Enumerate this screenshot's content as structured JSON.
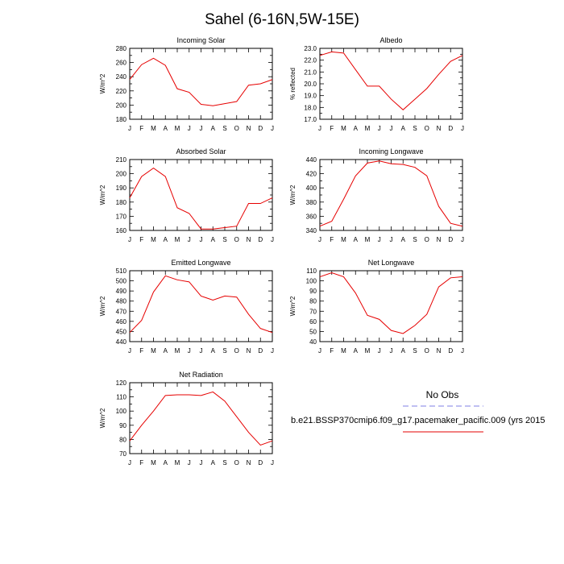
{
  "figure_title": "Sahel (6-16N,5W-15E)",
  "legend": {
    "items": [
      {
        "label": "No Obs",
        "color": "#7f7fe6",
        "dash": "dashed"
      },
      {
        "label": "b.e21.BSSP370cmip6.f09_g17.pacemaker_pacific.009 (yrs 2015",
        "color": "#e60000",
        "dash": "solid"
      }
    ]
  },
  "chart_data": [
    {
      "type": "line",
      "title": "Incoming Solar",
      "ylabel": "W/m^2",
      "x": [
        "J",
        "F",
        "M",
        "A",
        "M",
        "J",
        "J",
        "A",
        "S",
        "O",
        "N",
        "D",
        "J"
      ],
      "ylim": [
        180,
        280
      ],
      "yticks": [
        180,
        190,
        200,
        210,
        220,
        230,
        240,
        250,
        260,
        270,
        280
      ],
      "ytick_labels": [
        "180",
        "",
        "200",
        "",
        "220",
        "",
        "240",
        "",
        "260",
        "",
        "280"
      ],
      "series": [
        {
          "values": [
            236,
            257,
            266,
            256,
            223,
            218,
            201,
            199,
            202,
            205,
            228,
            230,
            236
          ],
          "color": "#e60000"
        }
      ]
    },
    {
      "type": "line",
      "title": "Albedo",
      "ylabel": "% reflected",
      "x": [
        "J",
        "F",
        "M",
        "A",
        "M",
        "J",
        "J",
        "A",
        "S",
        "O",
        "N",
        "D",
        "J"
      ],
      "ylim": [
        17.0,
        23.0
      ],
      "yticks": [
        17.0,
        17.5,
        18.0,
        18.5,
        19.0,
        19.5,
        20.0,
        20.5,
        21.0,
        21.5,
        22.0,
        22.5,
        23.0
      ],
      "ytick_labels": [
        "17.0",
        "",
        "18.0",
        "",
        "19.0",
        "",
        "20.0",
        "",
        "21.0",
        "",
        "22.0",
        "",
        "23.0"
      ],
      "series": [
        {
          "values": [
            22.4,
            22.7,
            22.6,
            21.2,
            19.8,
            19.8,
            18.7,
            17.8,
            18.7,
            19.6,
            20.8,
            21.9,
            22.4
          ],
          "color": "#e60000"
        }
      ]
    },
    {
      "type": "line",
      "title": "Absorbed Solar",
      "ylabel": "W/m^2",
      "x": [
        "J",
        "F",
        "M",
        "A",
        "M",
        "J",
        "J",
        "A",
        "S",
        "O",
        "N",
        "D",
        "J"
      ],
      "ylim": [
        160,
        210
      ],
      "yticks": [
        160,
        165,
        170,
        175,
        180,
        185,
        190,
        195,
        200,
        205,
        210
      ],
      "ytick_labels": [
        "160",
        "",
        "170",
        "",
        "180",
        "",
        "190",
        "",
        "200",
        "",
        "210"
      ],
      "series": [
        {
          "values": [
            183,
            198,
            204,
            198,
            176,
            172,
            161,
            161,
            162,
            163,
            179,
            179,
            183
          ],
          "color": "#e60000"
        }
      ]
    },
    {
      "type": "line",
      "title": "Incoming Longwave",
      "ylabel": "W/m^2",
      "x": [
        "J",
        "F",
        "M",
        "A",
        "M",
        "J",
        "J",
        "A",
        "S",
        "O",
        "N",
        "D",
        "J"
      ],
      "ylim": [
        340,
        440
      ],
      "yticks": [
        340,
        350,
        360,
        370,
        380,
        390,
        400,
        410,
        420,
        430,
        440
      ],
      "ytick_labels": [
        "340",
        "",
        "360",
        "",
        "380",
        "",
        "400",
        "",
        "420",
        "",
        "440"
      ],
      "series": [
        {
          "values": [
            346,
            353,
            384,
            417,
            435,
            438,
            434,
            433,
            429,
            417,
            374,
            350,
            346
          ],
          "color": "#e60000"
        }
      ]
    },
    {
      "type": "line",
      "title": "Emitted Longwave",
      "ylabel": "W/m^2",
      "x": [
        "J",
        "F",
        "M",
        "A",
        "M",
        "J",
        "J",
        "A",
        "S",
        "O",
        "N",
        "D",
        "J"
      ],
      "ylim": [
        440,
        510
      ],
      "yticks": [
        440,
        450,
        460,
        470,
        480,
        490,
        500,
        510
      ],
      "ytick_labels": [
        "440",
        "450",
        "460",
        "470",
        "480",
        "490",
        "500",
        "510"
      ],
      "series": [
        {
          "values": [
            449,
            461,
            489,
            505,
            501,
            499,
            485,
            481,
            485,
            484,
            467,
            453,
            449
          ],
          "color": "#e60000"
        }
      ]
    },
    {
      "type": "line",
      "title": "Net Longwave",
      "ylabel": "W/m^2",
      "x": [
        "J",
        "F",
        "M",
        "A",
        "M",
        "J",
        "J",
        "A",
        "S",
        "O",
        "N",
        "D",
        "J"
      ],
      "ylim": [
        40,
        110
      ],
      "yticks": [
        40,
        50,
        60,
        70,
        80,
        90,
        100,
        110
      ],
      "ytick_labels": [
        "40",
        "50",
        "60",
        "70",
        "80",
        "90",
        "100",
        "110"
      ],
      "series": [
        {
          "values": [
            104,
            108,
            104,
            88,
            66,
            62,
            51,
            48,
            56,
            67,
            94,
            103,
            104
          ],
          "color": "#e60000"
        }
      ]
    },
    {
      "type": "line",
      "title": "Net Radiation",
      "ylabel": "W/m^2",
      "x": [
        "J",
        "F",
        "M",
        "A",
        "M",
        "J",
        "J",
        "A",
        "S",
        "O",
        "N",
        "D",
        "J"
      ],
      "ylim": [
        70,
        120
      ],
      "yticks": [
        70,
        75,
        80,
        85,
        90,
        95,
        100,
        105,
        110,
        115,
        120
      ],
      "ytick_labels": [
        "70",
        "",
        "80",
        "",
        "90",
        "",
        "100",
        "",
        "110",
        "",
        "120"
      ],
      "series": [
        {
          "values": [
            79,
            90,
            100,
            111,
            111.5,
            111.5,
            111,
            113.5,
            107,
            96,
            85,
            76,
            79
          ],
          "color": "#e60000"
        }
      ]
    }
  ]
}
